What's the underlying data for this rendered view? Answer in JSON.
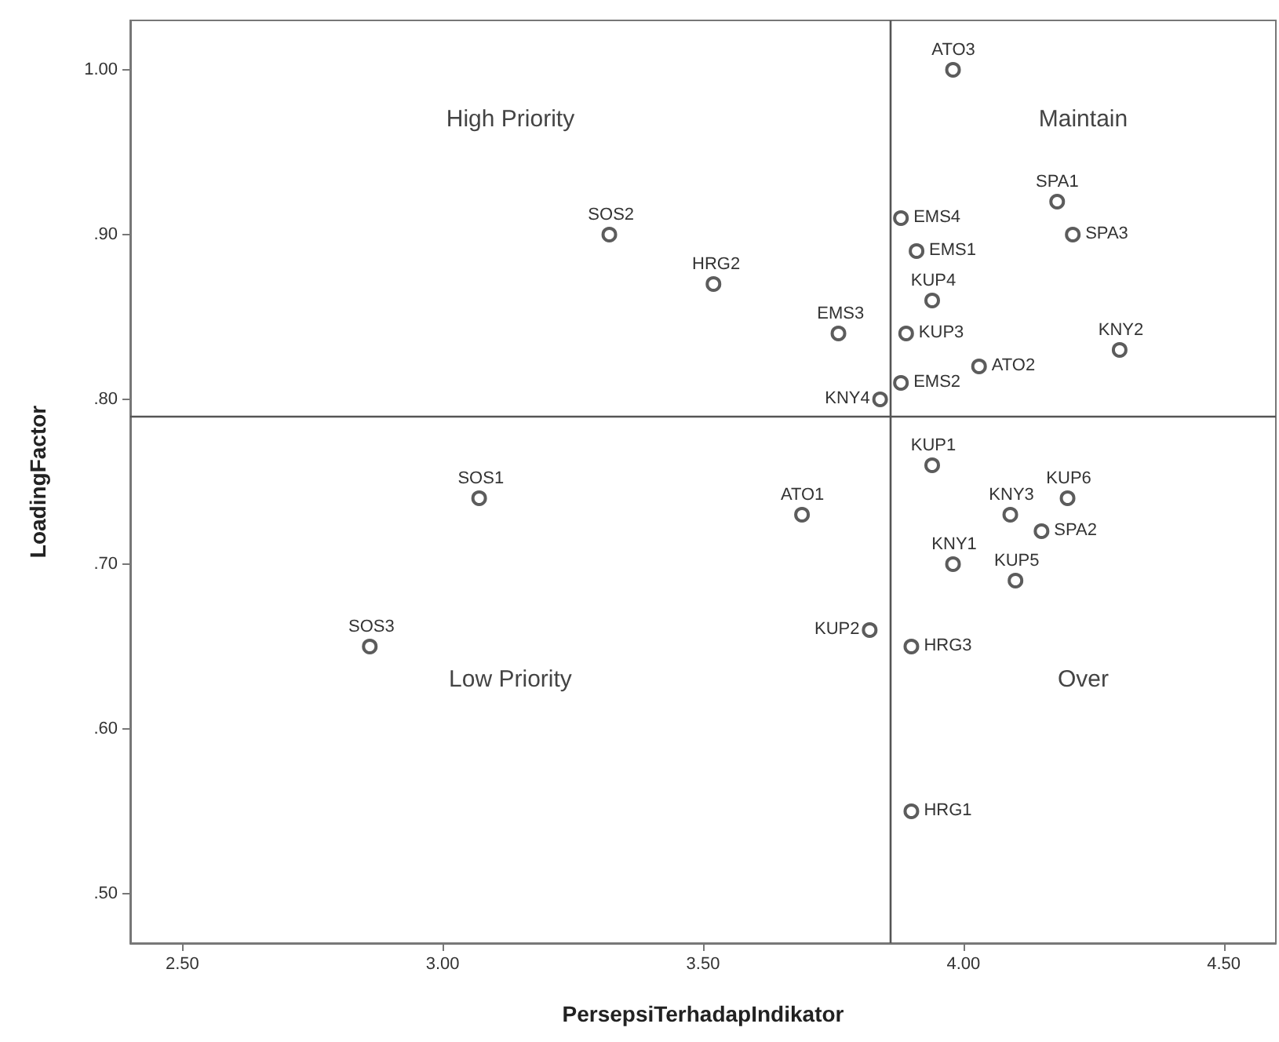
{
  "chart_data": {
    "type": "scatter",
    "xlabel": "PersepsiTerhadapIndikator",
    "ylabel": "LoadingFactor",
    "x": [
      3.32,
      3.52,
      3.07,
      2.86,
      3.98,
      3.88,
      3.91,
      4.18,
      4.21,
      3.94,
      3.76,
      3.89,
      3.88,
      3.84,
      4.03,
      4.3,
      3.94,
      4.2,
      4.09,
      4.15,
      3.98,
      4.1,
      3.69,
      3.82,
      3.9,
      3.9
    ],
    "values": [
      0.9,
      0.87,
      0.74,
      0.65,
      1.0,
      0.91,
      0.89,
      0.92,
      0.9,
      0.86,
      0.84,
      0.84,
      0.81,
      0.8,
      0.82,
      0.83,
      0.76,
      0.74,
      0.73,
      0.72,
      0.7,
      0.69,
      0.73,
      0.66,
      0.65,
      0.55
    ],
    "color": "#333333",
    "marker": "circle",
    "grid": false,
    "xlim": [
      2.4,
      4.6
    ],
    "ylim": [
      0.47,
      1.03
    ],
    "xticks": [
      {
        "value": 2.5,
        "label": "2.50"
      },
      {
        "value": 3,
        "label": "3.00"
      },
      {
        "value": 3.5,
        "label": "3.50"
      },
      {
        "value": 4,
        "label": "4.00"
      },
      {
        "value": 4.5,
        "label": "4.50"
      }
    ],
    "yticks": [
      {
        "value": 0.5,
        "label": ".50"
      },
      {
        "value": 0.6,
        "label": ".60"
      },
      {
        "value": 0.7,
        "label": ".70"
      },
      {
        "value": 0.8,
        "label": ".80"
      },
      {
        "value": 0.9,
        "label": ".90"
      },
      {
        "value": 1,
        "label": "1.00"
      }
    ],
    "ref_lines": [
      {
        "axis": "x",
        "value": 3.86,
        "label": null,
        "color": "#555555"
      },
      {
        "axis": "y",
        "value": 0.79,
        "label": null,
        "color": "#555555"
      }
    ],
    "annotations": [
      "High Priority",
      "Maintain",
      "Low Priority",
      "Over",
      {
        "text": "SOS2",
        "x": 3.32,
        "y": 0.9
      },
      {
        "text": "HRG2",
        "x": 3.52,
        "y": 0.87
      },
      {
        "text": "SOS1",
        "x": 3.07,
        "y": 0.74
      },
      {
        "text": "SOS3",
        "x": 2.86,
        "y": 0.65
      },
      {
        "text": "ATO3",
        "x": 3.98,
        "y": 1.0
      },
      {
        "text": "EMS4",
        "x": 3.88,
        "y": 0.91
      },
      {
        "text": "EMS1",
        "x": 3.91,
        "y": 0.89
      },
      {
        "text": "SPA1",
        "x": 4.18,
        "y": 0.92
      },
      {
        "text": "SPA3",
        "x": 4.21,
        "y": 0.9
      },
      {
        "text": "KUP4",
        "x": 3.94,
        "y": 0.86
      },
      {
        "text": "EMS3",
        "x": 3.76,
        "y": 0.84
      },
      {
        "text": "KUP3",
        "x": 3.89,
        "y": 0.84
      },
      {
        "text": "EMS2",
        "x": 3.88,
        "y": 0.81
      },
      {
        "text": "KNY4",
        "x": 3.84,
        "y": 0.8
      },
      {
        "text": "ATO2",
        "x": 4.03,
        "y": 0.82
      },
      {
        "text": "KNY2",
        "x": 4.3,
        "y": 0.83
      },
      {
        "text": "KUP1",
        "x": 3.94,
        "y": 0.76
      },
      {
        "text": "KUP6",
        "x": 4.2,
        "y": 0.74
      },
      {
        "text": "KNY3",
        "x": 4.09,
        "y": 0.73
      },
      {
        "text": "SPA2",
        "x": 4.15,
        "y": 0.72
      },
      {
        "text": "KNY1",
        "x": 3.98,
        "y": 0.7
      },
      {
        "text": "KUP5",
        "x": 4.1,
        "y": 0.69
      },
      {
        "text": "ATO1",
        "x": 3.69,
        "y": 0.73
      },
      {
        "text": "KUP2",
        "x": 3.82,
        "y": 0.66
      },
      {
        "text": "HRG3",
        "x": 3.9,
        "y": 0.65
      },
      {
        "text": "HRG1",
        "x": 3.9,
        "y": 0.55
      }
    ]
  }
}
